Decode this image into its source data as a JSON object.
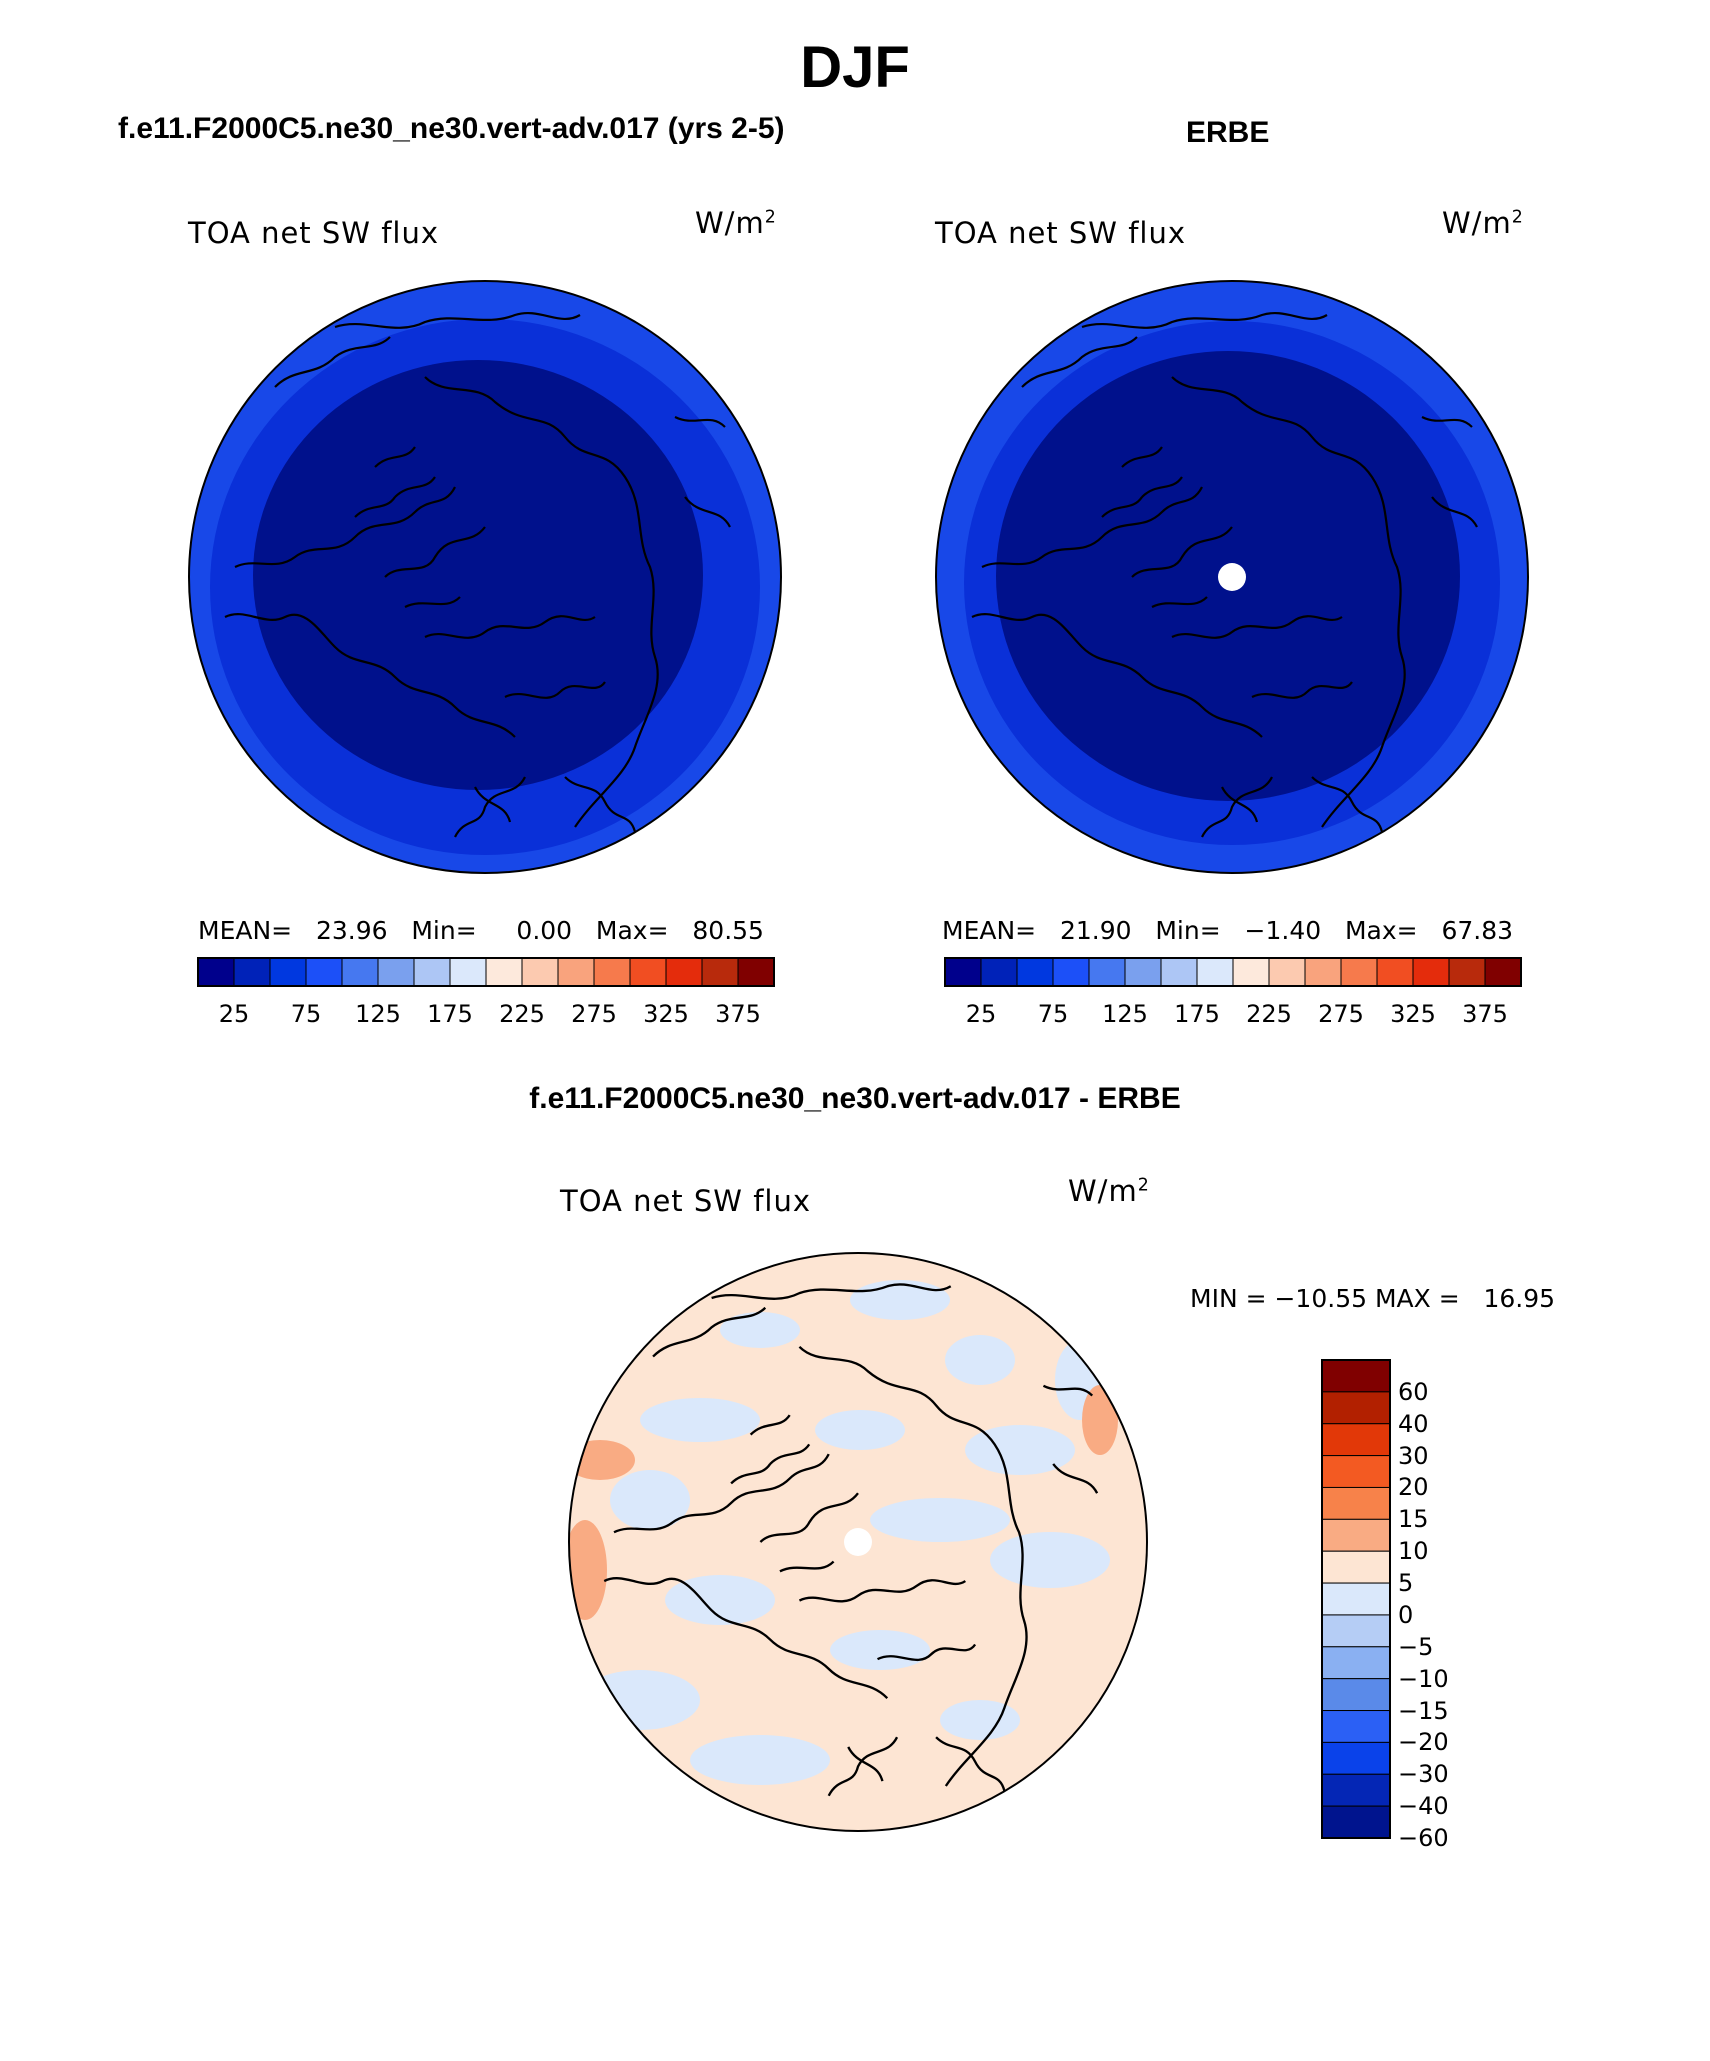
{
  "figure": {
    "title": "DJF"
  },
  "panels": [
    {
      "subtitle": "f.e11.F2000C5.ne30_ne30.vert-adv.017 (yrs 2-5)",
      "variable": "TOA net SW flux",
      "units_base": "W/m",
      "units_exp": "2",
      "stats": "MEAN=   23.96   Min=     0.00   Max=   80.55",
      "colorbar_ticks": [
        "25",
        "75",
        "125",
        "175",
        "225",
        "275",
        "325",
        "375"
      ]
    },
    {
      "subtitle": "ERBE",
      "variable": "TOA net SW flux",
      "units_base": "W/m",
      "units_exp": "2",
      "stats": "MEAN=   21.90   Min=   −1.40   Max=   67.83",
      "colorbar_ticks": [
        "25",
        "75",
        "125",
        "175",
        "225",
        "275",
        "325",
        "375"
      ]
    },
    {
      "subtitle": "f.e11.F2000C5.ne30_ne30.vert-adv.017 - ERBE",
      "variable": "TOA net SW flux",
      "units_base": "W/m",
      "units_exp": "2",
      "stats": "MIN = −10.55 MAX =   16.95",
      "colorbar_ticks": [
        "60",
        "40",
        "30",
        "20",
        "15",
        "10",
        "5",
        "0",
        "−5",
        "−10",
        "−15",
        "−20",
        "−30",
        "−40",
        "−60"
      ]
    }
  ],
  "colors": {
    "abs_scale": [
      "#00008c",
      "#0022b8",
      "#0038e0",
      "#1c50f8",
      "#4678f0",
      "#7aa0ee",
      "#adc6f5",
      "#dbe8fb",
      "#fde9dc",
      "#fccab0",
      "#f9a37d",
      "#f67a4c",
      "#f14e22",
      "#e42c0c",
      "#b82a0c",
      "#800000"
    ],
    "diff_scale_top_to_bottom": [
      "#800000",
      "#b22000",
      "#e23808",
      "#f35a22",
      "#f7824a",
      "#f9ab83",
      "#fde5d3",
      "#dae8fb",
      "#b5cdf5",
      "#8ab0f2",
      "#5a8ae9",
      "#2b60f5",
      "#0a42ea",
      "#0426b5",
      "#00148e"
    ],
    "map_deep": "#00118c",
    "map_mid": "#0a30d8",
    "map_outer": "#1848e8",
    "diff_pos": "#fde5d3",
    "diff_neg": "#dae8fb",
    "diff_warm": "#f9ab83"
  },
  "map_data": [
    {
      "projection": "north polar stereographic",
      "field": "TOA net SW flux",
      "mean": 23.96,
      "min": 0.0,
      "max": 80.55,
      "contour_levels": [
        25,
        50,
        75,
        100,
        125,
        150,
        175,
        200,
        225,
        250,
        275,
        300,
        325,
        350,
        375
      ]
    },
    {
      "projection": "north polar stereographic",
      "field": "TOA net SW flux",
      "mean": 21.9,
      "min": -1.4,
      "max": 67.83,
      "pole_missing": true,
      "contour_levels": [
        25,
        50,
        75,
        100,
        125,
        150,
        175,
        200,
        225,
        250,
        275,
        300,
        325,
        350,
        375
      ]
    },
    {
      "projection": "north polar stereographic",
      "field": "TOA net SW flux difference",
      "min": -10.55,
      "max": 16.95,
      "pole_missing": true,
      "contour_levels": [
        -60,
        -40,
        -30,
        -20,
        -15,
        -10,
        -5,
        0,
        5,
        10,
        15,
        20,
        30,
        40,
        60
      ]
    }
  ]
}
